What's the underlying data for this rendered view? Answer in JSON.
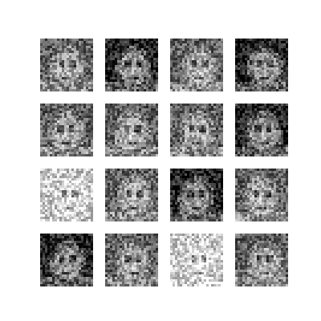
{
  "grid": {
    "rows": 4,
    "cols": 4,
    "colormap": "grayscale",
    "background": "#ffffff",
    "tiles": [
      {
        "id": 1,
        "tone": "mid"
      },
      {
        "id": 2,
        "tone": "dark"
      },
      {
        "id": 3,
        "tone": "mid"
      },
      {
        "id": 4,
        "tone": "dark"
      },
      {
        "id": 5,
        "tone": "mid"
      },
      {
        "id": 6,
        "tone": "mid"
      },
      {
        "id": 7,
        "tone": "mid"
      },
      {
        "id": 8,
        "tone": "dark"
      },
      {
        "id": 9,
        "tone": "light"
      },
      {
        "id": 10,
        "tone": "mid"
      },
      {
        "id": 11,
        "tone": "dark"
      },
      {
        "id": 12,
        "tone": "mid"
      },
      {
        "id": 13,
        "tone": "dark"
      },
      {
        "id": 14,
        "tone": "mid"
      },
      {
        "id": 15,
        "tone": "light"
      },
      {
        "id": 16,
        "tone": "mid"
      }
    ]
  }
}
